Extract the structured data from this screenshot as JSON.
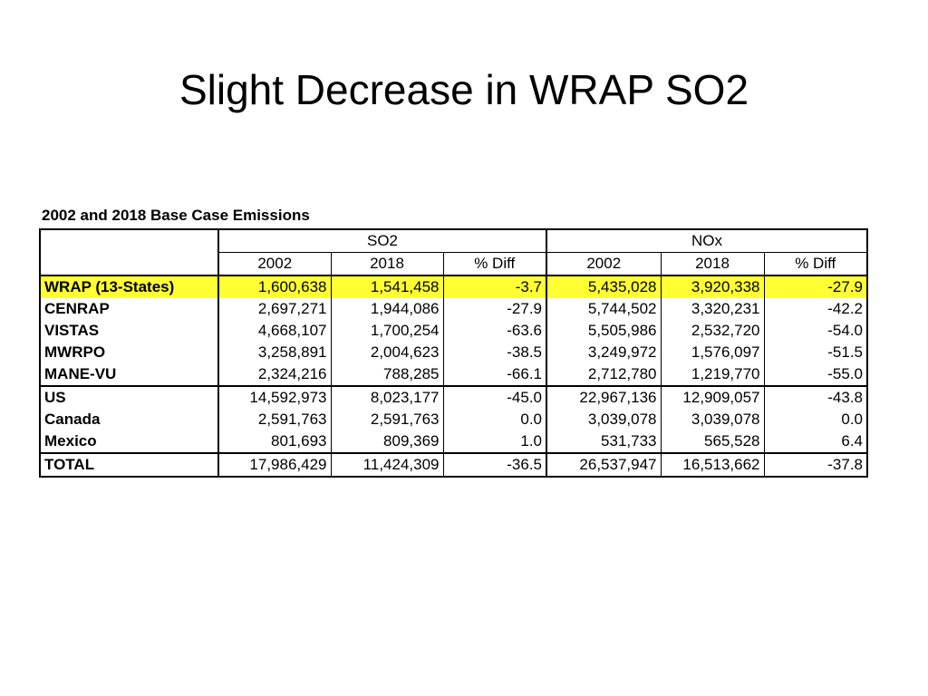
{
  "slide": {
    "title": "Slight Decrease in WRAP SO2"
  },
  "table": {
    "caption": "2002 and 2018 Base Case Emissions",
    "groups": [
      "SO2",
      "NOx"
    ],
    "subheaders": [
      "2002",
      "2018",
      "% Diff",
      "2002",
      "2018",
      "% Diff"
    ],
    "rows": [
      {
        "label": "WRAP (13-States)",
        "cells": [
          "1,600,638",
          "1,541,458",
          "-3.7",
          "5,435,028",
          "3,920,338",
          "-27.9"
        ],
        "highlight": "#ffff33"
      },
      {
        "label": "CENRAP",
        "cells": [
          "2,697,271",
          "1,944,086",
          "-27.9",
          "5,744,502",
          "3,320,231",
          "-42.2"
        ]
      },
      {
        "label": "VISTAS",
        "cells": [
          "4,668,107",
          "1,700,254",
          "-63.6",
          "5,505,986",
          "2,532,720",
          "-54.0"
        ]
      },
      {
        "label": "MWRPO",
        "cells": [
          "3,258,891",
          "2,004,623",
          "-38.5",
          "3,249,972",
          "1,576,097",
          "-51.5"
        ]
      },
      {
        "label": "MANE-VU",
        "cells": [
          "2,324,216",
          "788,285",
          "-66.1",
          "2,712,780",
          "1,219,770",
          "-55.0"
        ]
      },
      {
        "label": "US",
        "cells": [
          "14,592,973",
          "8,023,177",
          "-45.0",
          "22,967,136",
          "12,909,057",
          "-43.8"
        ]
      },
      {
        "label": "Canada",
        "cells": [
          "2,591,763",
          "2,591,763",
          "0.0",
          "3,039,078",
          "3,039,078",
          "0.0"
        ]
      },
      {
        "label": "Mexico",
        "cells": [
          "801,693",
          "809,369",
          "1.0",
          "531,733",
          "565,528",
          "6.4"
        ]
      },
      {
        "label": "TOTAL",
        "cells": [
          "17,986,429",
          "11,424,309",
          "-36.5",
          "26,537,947",
          "16,513,662",
          "-37.8"
        ]
      }
    ]
  }
}
